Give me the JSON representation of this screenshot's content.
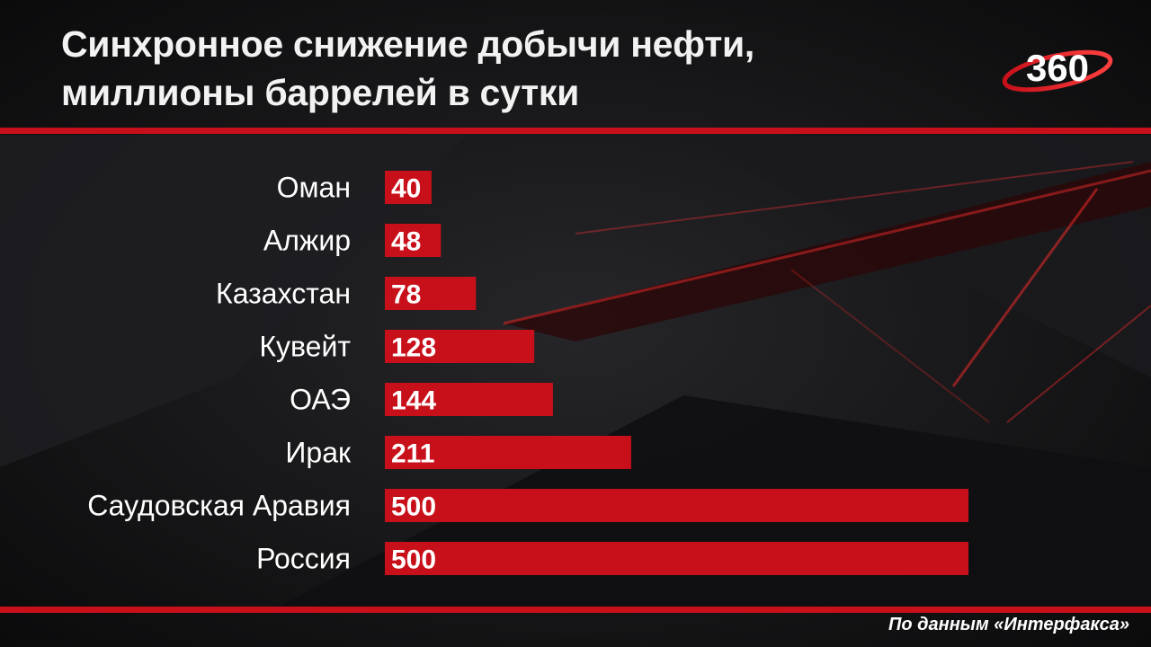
{
  "title_lines": [
    "Синхронное снижение добычи нефти,",
    "миллионы баррелей в сутки"
  ],
  "logo_text": "360",
  "source": "По данным «Интерфакса»",
  "colors": {
    "bar": "#c8101a",
    "rule": "#c8101a",
    "background": "#141416",
    "text": "#ffffff"
  },
  "chart_data": {
    "type": "bar",
    "orientation": "horizontal",
    "title": "Синхронное снижение добычи нефти, миллионы баррелей в сутки",
    "categories": [
      "Оман",
      "Алжир",
      "Казахстан",
      "Кувейт",
      "ОАЭ",
      "Ирак",
      "Саудовская Аравия",
      "Россия"
    ],
    "values": [
      40,
      48,
      78,
      128,
      144,
      211,
      500,
      500
    ],
    "data_labels": [
      "40",
      "48",
      "78",
      "128",
      "144",
      "211",
      "500",
      "500"
    ],
    "xlim": [
      0,
      500
    ],
    "grid": false,
    "legend": "none"
  }
}
